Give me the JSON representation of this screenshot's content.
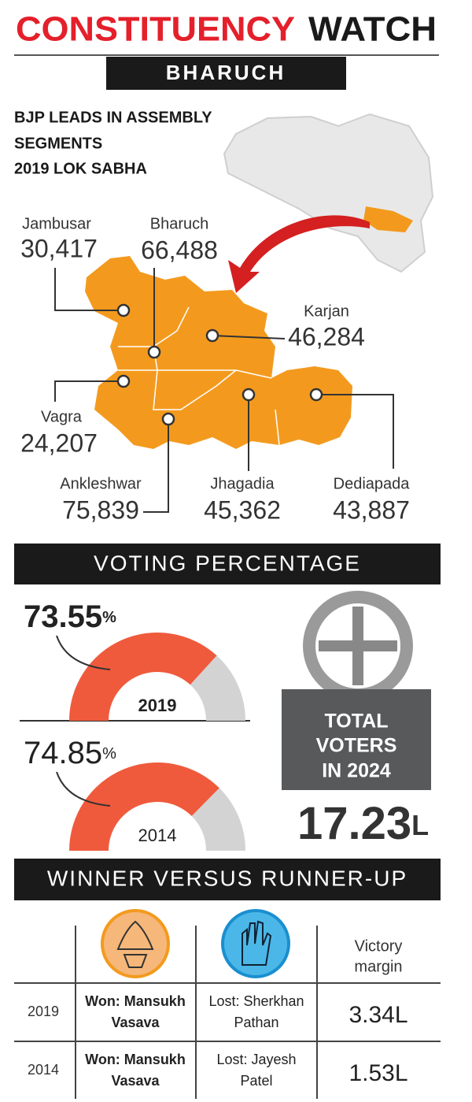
{
  "header": {
    "title_red": "CONSTITUENCY",
    "title_black": "WATCH",
    "constituency": "BHARUCH"
  },
  "map": {
    "subtitle": [
      "BJP LEADS IN ASSEMBLY",
      "SEGMENTS",
      "2019 LOK SABHA"
    ],
    "segments": [
      {
        "name": "Jambusar",
        "lead": "30,417"
      },
      {
        "name": "Bharuch",
        "lead": "66,488"
      },
      {
        "name": "Karjan",
        "lead": "46,284"
      },
      {
        "name": "Vagra",
        "lead": "24,207"
      },
      {
        "name": "Ankleshwar",
        "lead": "75,839"
      },
      {
        "name": "Jhagadia",
        "lead": "45,362"
      },
      {
        "name": "Dediapada",
        "lead": "43,887"
      }
    ]
  },
  "voting": {
    "title": "VOTING PERCENTAGE",
    "gauges": [
      {
        "value": 73.55,
        "unit": "%",
        "year": "2019"
      },
      {
        "value": 74.85,
        "unit": "%",
        "year": "2014"
      }
    ],
    "total_label": [
      "TOTAL",
      "VOTERS",
      "IN 2024"
    ],
    "total_value": "17.23",
    "total_unit": "L"
  },
  "results": {
    "title": "WINNER VERSUS RUNNER-UP",
    "margin_header": [
      "Victory",
      "margin"
    ],
    "rows": [
      {
        "year": "2019",
        "winner": [
          "Won: Mansukh",
          "Vasava"
        ],
        "loser": [
          "Lost: Sherkhan",
          "Pathan"
        ],
        "margin": "3.34L"
      },
      {
        "year": "2014",
        "winner": [
          "Won: Mansukh",
          "Vasava"
        ],
        "loser": [
          "Lost: Jayesh",
          "Patel"
        ],
        "margin": "1.53L"
      }
    ]
  }
}
